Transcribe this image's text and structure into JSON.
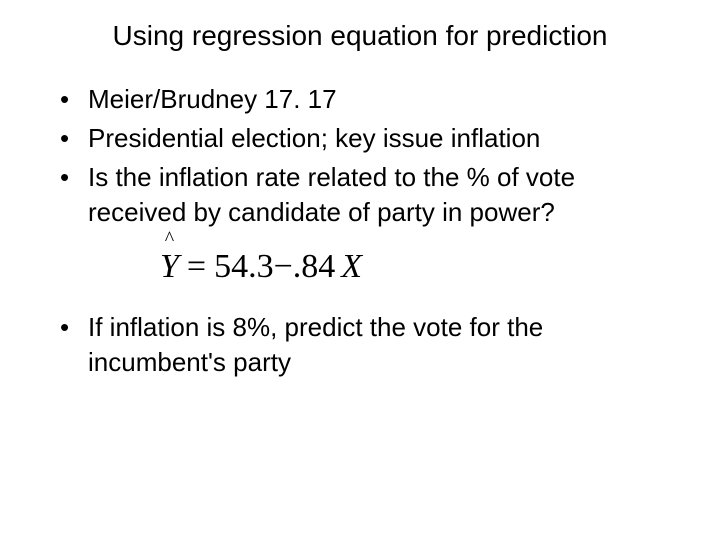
{
  "title": "Using regression equation for prediction",
  "bullets": {
    "b1": "Meier/Brudney 17. 17",
    "b2": "Presidential election; key issue inflation",
    "b3": "Is the inflation rate related to the % of vote received by candidate of party in power?",
    "b4": "If inflation is 8%, predict the vote for the incumbent's party"
  },
  "equation": {
    "lhs_var": "Y",
    "hat": "^",
    "eq": "=",
    "intercept": "54.3",
    "minus": "−",
    "slope": ".84",
    "rhs_var": "X",
    "font_family": "Times New Roman",
    "font_size_pt": 34
  },
  "style": {
    "background_color": "#ffffff",
    "text_color": "#000000",
    "title_fontsize": 28,
    "body_fontsize": 26,
    "font_family": "Verdana"
  }
}
